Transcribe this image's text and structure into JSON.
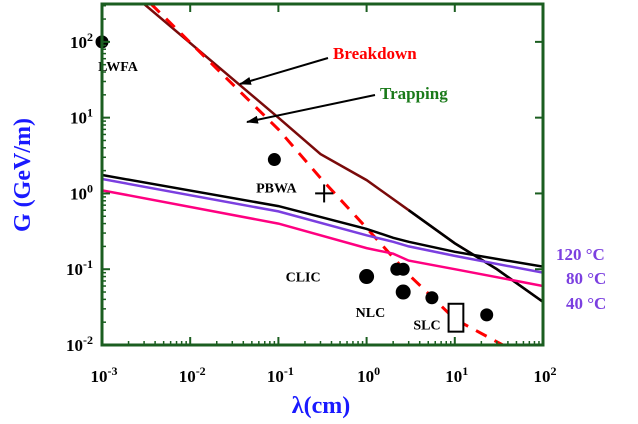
{
  "chart_data": {
    "type": "line",
    "xlabel": "λ(cm)",
    "ylabel": "G (GeV/m)",
    "xscale": "log",
    "yscale": "log",
    "xlim": [
      0.001,
      100
    ],
    "ylim": [
      0.01,
      316
    ],
    "grid": false,
    "x_ticks": [
      {
        "base": "10",
        "exp": "-3",
        "v": 0.001
      },
      {
        "base": "10",
        "exp": "-2",
        "v": 0.01
      },
      {
        "base": "10",
        "exp": "-1",
        "v": 0.1
      },
      {
        "base": "10",
        "exp": "0",
        "v": 1
      },
      {
        "base": "10",
        "exp": "1",
        "v": 10
      },
      {
        "base": "10",
        "exp": "2",
        "v": 100
      }
    ],
    "y_ticks": [
      {
        "base": "10",
        "exp": "-2",
        "v": 0.01
      },
      {
        "base": "10",
        "exp": "-1",
        "v": 0.1
      },
      {
        "base": "10",
        "exp": "0",
        "v": 1
      },
      {
        "base": "10",
        "exp": "1",
        "v": 10
      },
      {
        "base": "10",
        "exp": "2",
        "v": 100
      }
    ],
    "series": [
      {
        "name": "Breakdown",
        "color": "#7a0a0a",
        "style": "solid",
        "points": [
          [
            0.003,
            316
          ],
          [
            0.1,
            10
          ],
          [
            0.3,
            3.3
          ],
          [
            1,
            1.5
          ],
          [
            3,
            0.6
          ],
          [
            10,
            0.22
          ],
          [
            30,
            0.1
          ],
          [
            100,
            0.037
          ]
        ]
      },
      {
        "name": "",
        "color": "#000000",
        "style": "solid",
        "points": [
          [
            3,
            0.6
          ],
          [
            10,
            0.22
          ],
          [
            30,
            0.1
          ],
          [
            100,
            0.037
          ]
        ]
      },
      {
        "name": "Trapping",
        "color": "#ff0000",
        "style": "dashed",
        "points": [
          [
            0.0036,
            316
          ],
          [
            0.1,
            7
          ],
          [
            0.3,
            1.6
          ],
          [
            1,
            0.35
          ],
          [
            3,
            0.085
          ],
          [
            10,
            0.022
          ],
          [
            35,
            0.01
          ]
        ]
      },
      {
        "name": "120 °C",
        "color": "#000000",
        "style": "solid",
        "points": [
          [
            0.001,
            1.75
          ],
          [
            0.1,
            0.68
          ],
          [
            1,
            0.34
          ],
          [
            2,
            0.26
          ],
          [
            3,
            0.23
          ],
          [
            10,
            0.17
          ],
          [
            100,
            0.108
          ]
        ]
      },
      {
        "name": "80 °C",
        "color": "#7b3fe0",
        "style": "solid",
        "points": [
          [
            0.001,
            1.55
          ],
          [
            0.1,
            0.58
          ],
          [
            1,
            0.28
          ],
          [
            2,
            0.23
          ],
          [
            3,
            0.2
          ],
          [
            10,
            0.15
          ],
          [
            100,
            0.09
          ]
        ]
      },
      {
        "name": "40 °C",
        "color": "#ff0080",
        "style": "solid",
        "points": [
          [
            0.001,
            1.1
          ],
          [
            0.1,
            0.4
          ],
          [
            1,
            0.19
          ],
          [
            2,
            0.16
          ],
          [
            3,
            0.13
          ],
          [
            10,
            0.1
          ],
          [
            100,
            0.06
          ]
        ]
      }
    ],
    "points": [
      {
        "label": "LWFA",
        "x": 0.001,
        "y": 100
      },
      {
        "label": "PBWA",
        "x": 0.09,
        "y": 2.8
      },
      {
        "label": "CLIC",
        "x": 1.0,
        "y": 0.08
      },
      {
        "label": "",
        "x": 2.2,
        "y": 0.1
      },
      {
        "label": "",
        "x": 2.6,
        "y": 0.1
      },
      {
        "label": "NLC",
        "x": 2.6,
        "y": 0.05
      },
      {
        "label": "",
        "x": 5.5,
        "y": 0.042
      },
      {
        "label": "",
        "x": 23,
        "y": 0.025
      }
    ],
    "cross_marker": {
      "x": 0.33,
      "y": 1.0
    },
    "slc_box": {
      "label": "SLC",
      "x0": 8.5,
      "x1": 12.5,
      "y0": 0.015,
      "y1": 0.035
    },
    "annotations": [
      {
        "text": "Breakdown",
        "color": "#ff0000"
      },
      {
        "text": "Trapping",
        "color": "#1a7a1a"
      }
    ],
    "right_labels": [
      {
        "text": "120 °C",
        "color": "#7b3fe0"
      },
      {
        "text": "80 °C",
        "color": "#7b3fe0"
      },
      {
        "text": "40 °C",
        "color": "#7b3fe0"
      }
    ],
    "colors": {
      "frame": "#1b5e20",
      "ylabel": "#1a1aff",
      "xlabel": "#1a1aff"
    }
  }
}
